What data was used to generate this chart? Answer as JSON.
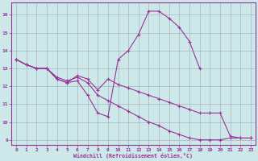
{
  "background_color": "#cce8e8",
  "grid_color": "#9999aa",
  "line_color": "#993399",
  "xlim": [
    -0.5,
    23.5
  ],
  "ylim": [
    8.7,
    16.7
  ],
  "xlabel": "Windchill (Refroidissement éolien,°C)",
  "yticks": [
    9,
    10,
    11,
    12,
    13,
    14,
    15,
    16
  ],
  "xticks": [
    0,
    1,
    2,
    3,
    4,
    5,
    6,
    7,
    8,
    9,
    10,
    11,
    12,
    13,
    14,
    15,
    16,
    17,
    18,
    19,
    20,
    21,
    22,
    23
  ],
  "series": [
    {
      "x": [
        0,
        1,
        2,
        3,
        4,
        5,
        6,
        7,
        8,
        9,
        10,
        11,
        12,
        13,
        14,
        15,
        16,
        17,
        18
      ],
      "y": [
        13.5,
        13.2,
        13.0,
        13.0,
        12.4,
        12.2,
        12.3,
        11.5,
        10.5,
        10.3,
        13.5,
        14.0,
        14.9,
        16.2,
        16.2,
        15.8,
        15.3,
        14.5,
        13.0
      ]
    },
    {
      "x": [
        0,
        1,
        2,
        3,
        4,
        5,
        6,
        7,
        8,
        9,
        10,
        11,
        12,
        13,
        14,
        15,
        16,
        17,
        18,
        19,
        20,
        21,
        22,
        23
      ],
      "y": [
        13.5,
        13.2,
        13.0,
        13.0,
        12.4,
        12.2,
        12.6,
        12.4,
        11.8,
        12.4,
        12.1,
        11.9,
        11.7,
        11.5,
        11.3,
        11.1,
        10.9,
        10.7,
        10.5,
        10.5,
        10.5,
        9.2,
        9.1,
        9.1
      ]
    },
    {
      "x": [
        0,
        1,
        2,
        3,
        4,
        5,
        6,
        7,
        8,
        9,
        10,
        11,
        12,
        13,
        14,
        15,
        16,
        17,
        18,
        19,
        20,
        21,
        22,
        23
      ],
      "y": [
        13.5,
        13.2,
        13.0,
        13.0,
        12.5,
        12.3,
        12.5,
        12.2,
        11.5,
        11.2,
        10.9,
        10.6,
        10.3,
        10.0,
        9.8,
        9.5,
        9.3,
        9.1,
        9.0,
        9.0,
        9.0,
        9.1,
        9.1,
        9.1
      ]
    }
  ]
}
